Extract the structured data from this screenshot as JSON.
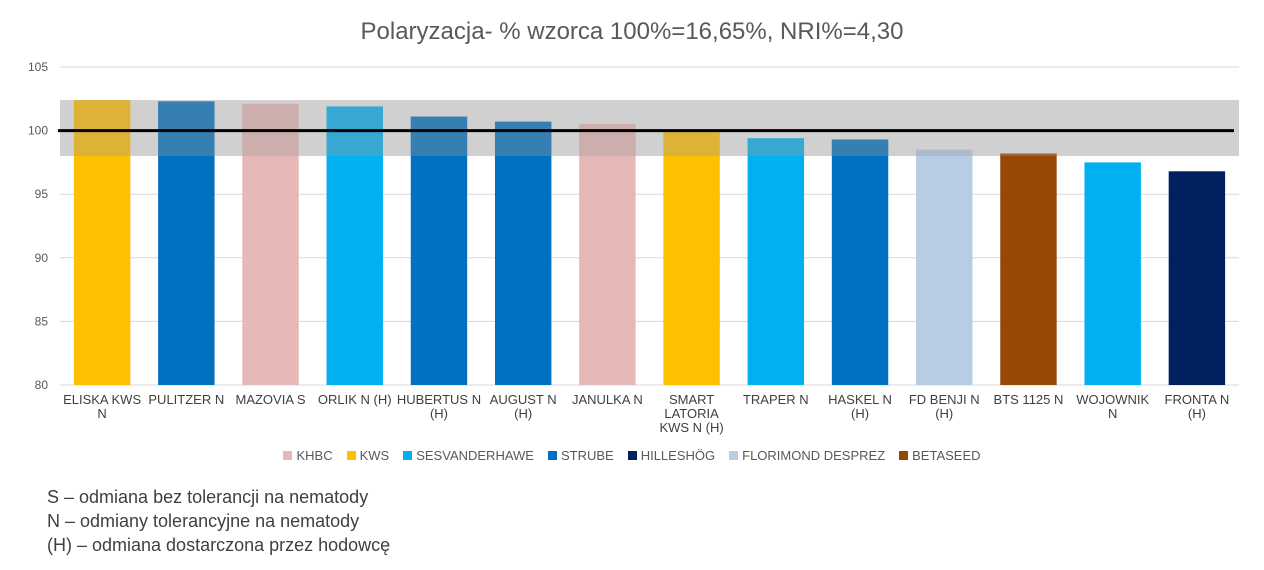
{
  "chart_data": {
    "type": "bar",
    "title": "Polaryzacja- % wzorca 100%=16,65%, NRI%=4,30",
    "ylim": [
      80,
      105
    ],
    "yticks": [
      "80",
      "85",
      "90",
      "95",
      "100",
      "105"
    ],
    "reference_line": 100,
    "band": [
      98,
      102.4
    ],
    "grid": true,
    "legend_position": "bottom",
    "categories": [
      [
        "ELISKA KWS",
        "N"
      ],
      [
        "PULITZER N"
      ],
      [
        "MAZOVIA S"
      ],
      [
        "ORLIK N (H)"
      ],
      [
        "HUBERTUS N",
        "(H)"
      ],
      [
        "AUGUST N",
        "(H)"
      ],
      [
        "JANULKA N"
      ],
      [
        "SMART",
        "LATORIA",
        "KWS N (H)"
      ],
      [
        "TRAPER N"
      ],
      [
        "HASKEL N",
        "(H)"
      ],
      [
        "FD BENJI N",
        "(H)"
      ],
      [
        "BTS 1125 N"
      ],
      [
        "WOJOWNIK",
        "N"
      ],
      [
        "FRONTA N",
        "(H)"
      ]
    ],
    "values": [
      102.4,
      102.3,
      102.1,
      101.9,
      101.1,
      100.7,
      100.5,
      100.0,
      99.4,
      99.3,
      98.5,
      98.2,
      97.5,
      96.8
    ],
    "breeders": [
      "KWS",
      "STRUBE",
      "KHBC",
      "SESVANDERHAWE",
      "STRUBE",
      "STRUBE",
      "KHBC",
      "KWS",
      "SESVANDERHAWE",
      "STRUBE",
      "FLORIMOND DESPREZ",
      "BETASEED",
      "SESVANDERHAWE",
      "HILLESHÖG"
    ],
    "legend": [
      {
        "name": "KHBC",
        "color": "#E6B8B7"
      },
      {
        "name": "KWS",
        "color": "#FFC000"
      },
      {
        "name": "SESVANDERHAWE",
        "color": "#00B0F0"
      },
      {
        "name": "STRUBE",
        "color": "#0070C0"
      },
      {
        "name": "HILLESHÖG",
        "color": "#002060"
      },
      {
        "name": "FLORIMOND DESPREZ",
        "color": "#B8CCE4"
      },
      {
        "name": "BETASEED",
        "color": "#974706"
      }
    ]
  },
  "notes": [
    "S – odmiana bez tolerancji na nematody",
    "N – odmiany tolerancyjne na nematody",
    "(H) – odmiana dostarczona przez hodowcę"
  ]
}
